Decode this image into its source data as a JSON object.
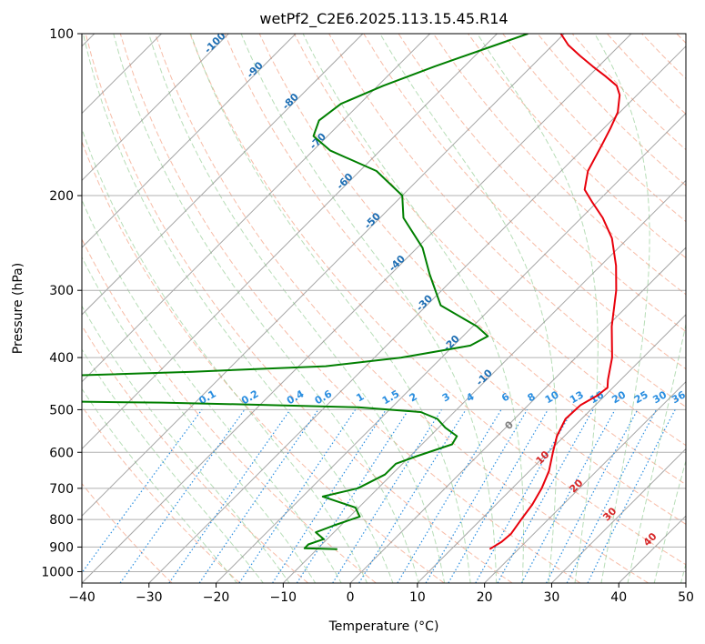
{
  "chart_data": {
    "type": "line",
    "subtype": "skew-T log-p diagram",
    "title": "wetPf2_C2E6.2025.113.15.45.R14",
    "xlabel": "Temperature (°C)",
    "ylabel": "Pressure (hPa)",
    "xlim": [
      -40,
      50
    ],
    "ylim": [
      1050,
      100
    ],
    "y_scale": "log",
    "skew_degrees": 45,
    "grid": true,
    "x_ticks": [
      -40,
      -30,
      -20,
      -10,
      0,
      10,
      20,
      30,
      40,
      50
    ],
    "y_ticks": [
      100,
      200,
      300,
      400,
      500,
      600,
      700,
      800,
      900,
      1000
    ],
    "series": [
      {
        "role": "temperature",
        "color": "#e8000b",
        "points": [
          {
            "p": 908,
            "t": 15.7
          },
          {
            "p": 880,
            "t": 16.4
          },
          {
            "p": 850,
            "t": 16.6
          },
          {
            "p": 800,
            "t": 16.0
          },
          {
            "p": 750,
            "t": 15.4
          },
          {
            "p": 700,
            "t": 14.4
          },
          {
            "p": 650,
            "t": 12.9
          },
          {
            "p": 600,
            "t": 10.7
          },
          {
            "p": 560,
            "t": 8.9
          },
          {
            "p": 520,
            "t": 7.6
          },
          {
            "p": 490,
            "t": 7.8
          },
          {
            "p": 470,
            "t": 8.9
          },
          {
            "p": 455,
            "t": 9.2
          },
          {
            "p": 440,
            "t": 8.1
          },
          {
            "p": 400,
            "t": 5.4
          },
          {
            "p": 350,
            "t": 0.7
          },
          {
            "p": 300,
            "t": -4.0
          },
          {
            "p": 270,
            "t": -7.7
          },
          {
            "p": 240,
            "t": -12.4
          },
          {
            "p": 220,
            "t": -16.8
          },
          {
            "p": 205,
            "t": -20.9
          },
          {
            "p": 195,
            "t": -23.7
          },
          {
            "p": 180,
            "t": -26.0
          },
          {
            "p": 160,
            "t": -27.9
          },
          {
            "p": 150,
            "t": -29.0
          },
          {
            "p": 140,
            "t": -30.3
          },
          {
            "p": 130,
            "t": -32.6
          },
          {
            "p": 125,
            "t": -34.4
          },
          {
            "p": 120,
            "t": -37.5
          },
          {
            "p": 115,
            "t": -40.9
          },
          {
            "p": 110,
            "t": -44.3
          },
          {
            "p": 105,
            "t": -47.7
          },
          {
            "p": 100,
            "t": -50.5
          }
        ]
      },
      {
        "role": "dewpoint",
        "color": "#007f00",
        "points": [
          {
            "p": 908,
            "t": -7.0
          },
          {
            "p": 905,
            "t": -12.0
          },
          {
            "p": 890,
            "t": -12.0
          },
          {
            "p": 870,
            "t": -10.5
          },
          {
            "p": 845,
            "t": -12.7
          },
          {
            "p": 820,
            "t": -11.0
          },
          {
            "p": 790,
            "t": -8.5
          },
          {
            "p": 760,
            "t": -10.5
          },
          {
            "p": 725,
            "t": -17.0
          },
          {
            "p": 700,
            "t": -13.0
          },
          {
            "p": 660,
            "t": -11.0
          },
          {
            "p": 630,
            "t": -11.0
          },
          {
            "p": 610,
            "t": -9.0
          },
          {
            "p": 580,
            "t": -5.5
          },
          {
            "p": 560,
            "t": -6.0
          },
          {
            "p": 540,
            "t": -9.0
          },
          {
            "p": 520,
            "t": -11.5
          },
          {
            "p": 505,
            "t": -15.0
          },
          {
            "p": 495,
            "t": -25.0
          },
          {
            "p": 488,
            "t": -45.0
          },
          {
            "p": 485,
            "t": -55.0
          },
          {
            "p": 480,
            "t": -90.0
          },
          {
            "p": 470,
            "t": -130.0
          },
          {
            "p": 455,
            "t": -130.0
          },
          {
            "p": 448,
            "t": -100.0
          },
          {
            "p": 440,
            "t": -85.0
          },
          {
            "p": 433,
            "t": -75.0
          },
          {
            "p": 425,
            "t": -55.0
          },
          {
            "p": 415,
            "t": -36.0
          },
          {
            "p": 400,
            "t": -26.0
          },
          {
            "p": 380,
            "t": -17.5
          },
          {
            "p": 365,
            "t": -16.3
          },
          {
            "p": 350,
            "t": -19.4
          },
          {
            "p": 320,
            "t": -27.9
          },
          {
            "p": 280,
            "t": -34.2
          },
          {
            "p": 250,
            "t": -39.2
          },
          {
            "p": 220,
            "t": -46.5
          },
          {
            "p": 200,
            "t": -50.0
          },
          {
            "p": 180,
            "t": -57.5
          },
          {
            "p": 165,
            "t": -67.4
          },
          {
            "p": 155,
            "t": -72.1
          },
          {
            "p": 145,
            "t": -73.6
          },
          {
            "p": 135,
            "t": -72.8
          },
          {
            "p": 125,
            "t": -69.2
          },
          {
            "p": 115,
            "t": -64.4
          },
          {
            "p": 105,
            "t": -58.5
          },
          {
            "p": 100,
            "t": -55.4
          }
        ]
      }
    ],
    "isotherm_labels": [
      -100,
      -90,
      -80,
      -70,
      -60,
      -50,
      -40,
      -30,
      -20,
      -10
    ],
    "mixing_ratio_labels": [
      "0.1",
      "0.2",
      "0.4",
      "0.6",
      "1",
      "1.5",
      "2",
      "3",
      "4",
      "6",
      "8",
      "10",
      "13",
      "16",
      "20",
      "25",
      "30",
      "36"
    ],
    "moist_adiabat_labels": [
      "0",
      "10",
      "20",
      "30",
      "40"
    ],
    "colors": {
      "isotherm_label": "#1f6fb4",
      "mixing_ratio": "#2a8ee0",
      "dry_adiabat": "#f4a58a",
      "moist_adiabat": "#98cf98",
      "moist_adiabat_label_zero": "#808080",
      "moist_adiabat_label": "#d62728"
    }
  }
}
